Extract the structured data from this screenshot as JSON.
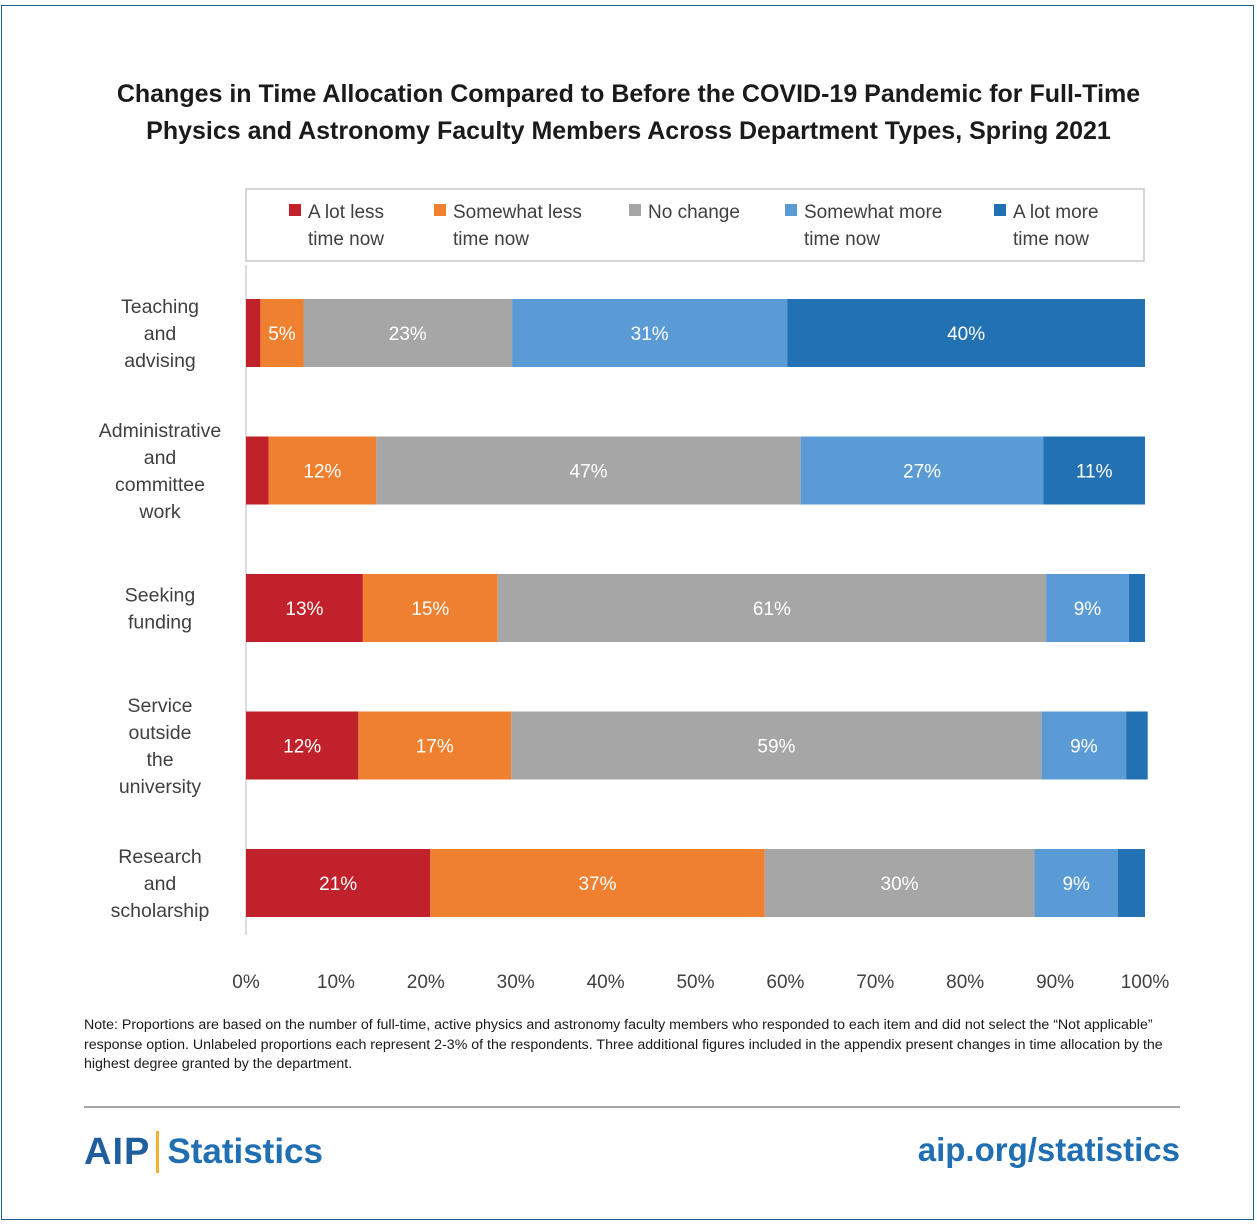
{
  "title_line1": "Changes in Time Allocation Compared to Before the COVID-19 Pandemic for Full-Time",
  "title_line2": "Physics and Astronomy Faculty Members Across Department Types, Spring 2021",
  "note": "Note: Proportions are based on the number of full-time, active physics and astronomy faculty members who responded to each item and did not select the “Not applicable” response option. Unlabeled proportions each represent 2-3% of the respondents. Three additional figures included in the appendix present changes in time allocation by the highest degree granted by the department.",
  "footer": {
    "logo_aip": "AIP",
    "logo_statistics": "Statistics",
    "url": "aip.org/statistics"
  },
  "colors": {
    "a_lot_less": "#c0212a",
    "somewhat_less": "#ee8030",
    "no_change": "#a6a6a6",
    "somewhat_more": "#5b9bd5",
    "a_lot_more": "#2271b3"
  },
  "chart_data": {
    "type": "bar",
    "orientation": "horizontal",
    "stacked": "percent",
    "categories": [
      [
        "Teaching",
        "and",
        "advising"
      ],
      [
        "Administrative",
        "and",
        "committee",
        "work"
      ],
      [
        "Seeking",
        "funding"
      ],
      [
        "Service",
        "outside",
        "the",
        "university"
      ],
      [
        "Research",
        "and",
        "scholarship"
      ]
    ],
    "series": [
      {
        "name": [
          "A lot less",
          "time now"
        ],
        "color": "#c0212a",
        "values": [
          1.6,
          2.5,
          13,
          12.5,
          20.5
        ],
        "labels": [
          "",
          "",
          "13%",
          "12%",
          "21%"
        ]
      },
      {
        "name": [
          "Somewhat less",
          "time now"
        ],
        "color": "#ee8030",
        "values": [
          4.8,
          12,
          15,
          17,
          37.2
        ],
        "labels": [
          "5%",
          "12%",
          "15%",
          "17%",
          "37%"
        ]
      },
      {
        "name": [
          "No change"
        ],
        "color": "#a6a6a6",
        "values": [
          23.2,
          47.2,
          61,
          59,
          30
        ],
        "labels": [
          "23%",
          "47%",
          "61%",
          "59%",
          "30%"
        ]
      },
      {
        "name": [
          "Somewhat more",
          "time now"
        ],
        "color": "#5b9bd5",
        "values": [
          30.6,
          27,
          9.2,
          9.4,
          9.3
        ],
        "labels": [
          "31%",
          "27%",
          "9%",
          "9%",
          "9%"
        ]
      },
      {
        "name": [
          "A lot more",
          "time now"
        ],
        "color": "#2271b3",
        "values": [
          39.8,
          11.3,
          1.8,
          2.4,
          3
        ],
        "labels": [
          "40%",
          "11%",
          "",
          "",
          ""
        ]
      }
    ],
    "xlim": [
      0,
      100
    ],
    "xticks": [
      "0%",
      "10%",
      "20%",
      "30%",
      "40%",
      "50%",
      "60%",
      "70%",
      "80%",
      "90%",
      "100%"
    ],
    "grid": false,
    "legend_position": "top"
  }
}
